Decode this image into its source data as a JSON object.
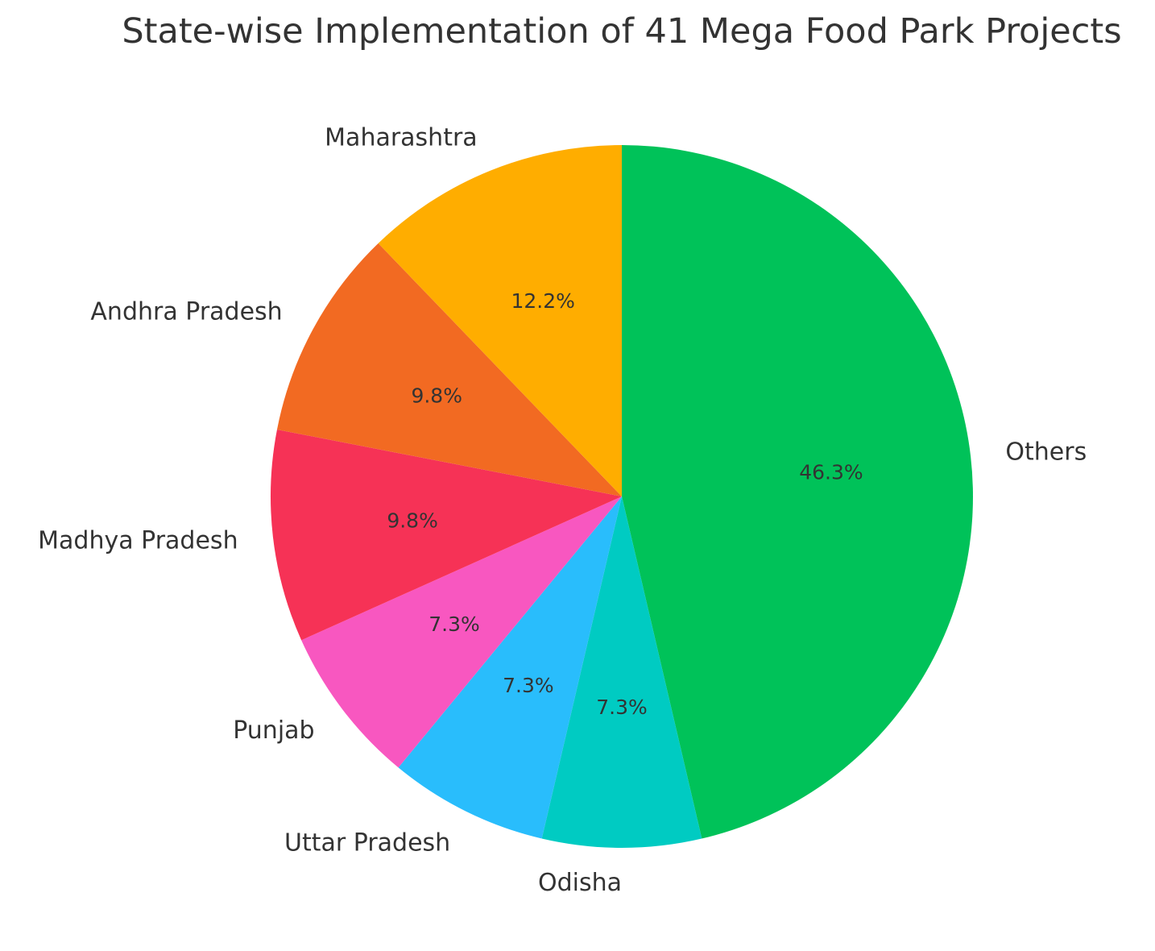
{
  "chart_data": {
    "type": "pie",
    "title": "State-wise Implementation of 41 Mega Food Park Projects",
    "slices": [
      {
        "label": "Others",
        "value": 19,
        "pct_label": "46.3%",
        "color": "#00c259"
      },
      {
        "label": "Odisha",
        "value": 3,
        "pct_label": "7.3%",
        "color": "#00cbc2"
      },
      {
        "label": "Uttar Pradesh",
        "value": 3,
        "pct_label": "7.3%",
        "color": "#29bdfc"
      },
      {
        "label": "Punjab",
        "value": 3,
        "pct_label": "7.3%",
        "color": "#f857c0"
      },
      {
        "label": "Madhya Pradesh",
        "value": 4,
        "pct_label": "9.8%",
        "color": "#f63256"
      },
      {
        "label": "Andhra Pradesh",
        "value": 4,
        "pct_label": "9.8%",
        "color": "#f26a22"
      },
      {
        "label": "Maharashtra",
        "value": 5,
        "pct_label": "12.2%",
        "color": "#ffad00"
      }
    ],
    "start_angle_deg": 90,
    "direction": "clockwise",
    "legend": "none"
  }
}
